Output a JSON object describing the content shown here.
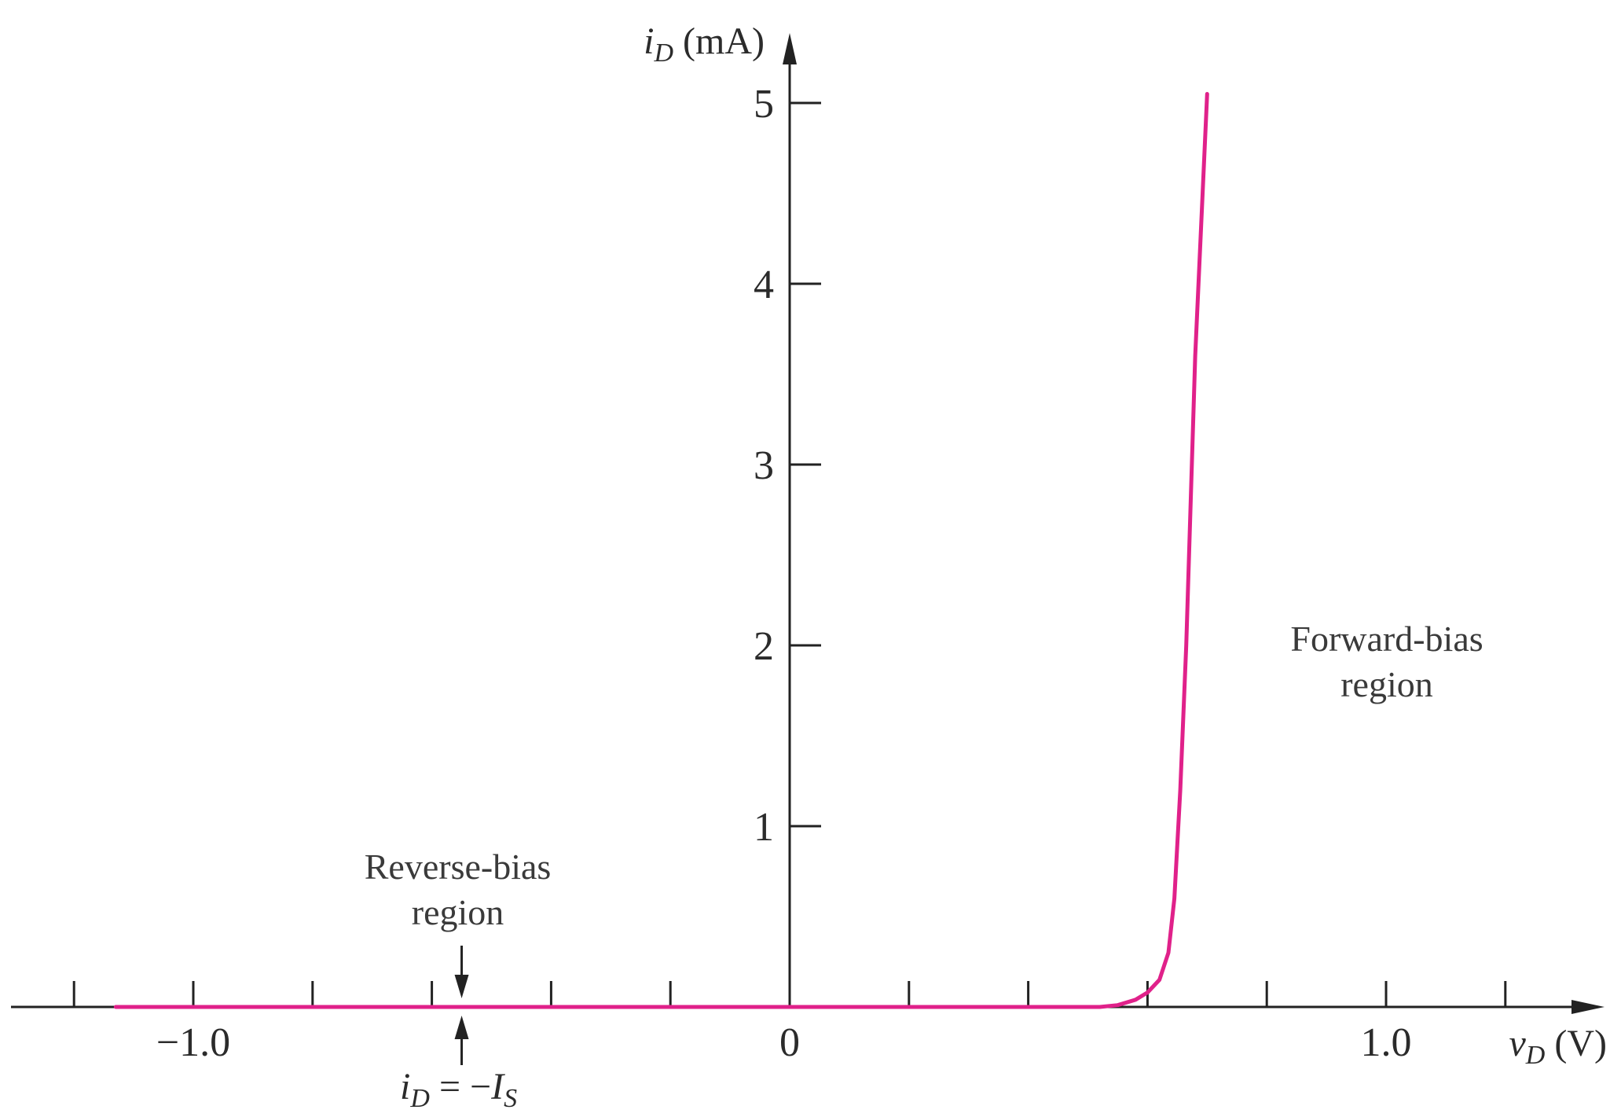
{
  "chart_data": {
    "type": "line",
    "title": "",
    "xlabel": {
      "symbol": "v",
      "sub": "D",
      "unit": "(V)"
    },
    "ylabel": {
      "symbol": "i",
      "sub": "D",
      "unit": "(mA)"
    },
    "xlim": [
      -1.3,
      1.4
    ],
    "ylim": [
      0,
      5.4
    ],
    "x_tick_values": [
      -1.2,
      -1.0,
      -0.8,
      -0.6,
      -0.4,
      -0.2,
      0.2,
      0.4,
      0.6,
      0.8,
      1.0,
      1.2
    ],
    "x_tick_labels": [
      {
        "value": -1.0,
        "text": "−1.0"
      },
      {
        "value": 0,
        "text": "0"
      },
      {
        "value": 1.0,
        "text": "1.0"
      }
    ],
    "y_tick_values": [
      1,
      2,
      3,
      4,
      5
    ],
    "y_tick_labels": [
      "1",
      "2",
      "3",
      "4",
      "5"
    ],
    "grid": false,
    "legend": "none",
    "series": [
      {
        "color": "#e0218a",
        "x": [
          -1.13,
          -0.5,
          0.0,
          0.4,
          0.52,
          0.55,
          0.58,
          0.6,
          0.62,
          0.635,
          0.645,
          0.655,
          0.665,
          0.68,
          0.7
        ],
        "y": [
          0,
          0,
          0,
          0,
          0,
          0.01,
          0.04,
          0.08,
          0.15,
          0.3,
          0.6,
          1.2,
          2.0,
          3.6,
          5.05
        ]
      }
    ],
    "annotations": {
      "reverse_bias": [
        "Reverse-bias",
        "region"
      ],
      "forward_bias": [
        "Forward-bias",
        "region"
      ],
      "saturation": {
        "x": -0.55,
        "lhs_symbol": "i",
        "lhs_sub": "D",
        "equals": " = −",
        "rhs_symbol": "I",
        "rhs_sub": "S"
      }
    }
  }
}
